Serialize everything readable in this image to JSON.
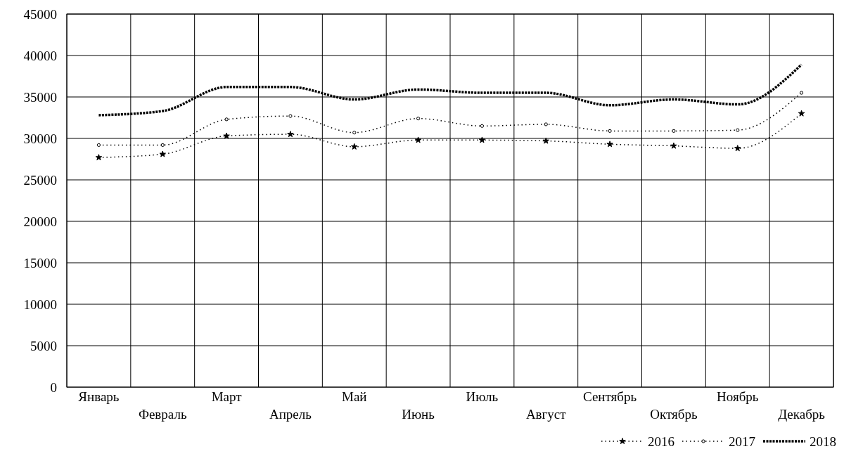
{
  "chart_data": {
    "type": "line",
    "categories": [
      "Январь",
      "Февраль",
      "Март",
      "Апрель",
      "Май",
      "Июнь",
      "Июль",
      "Август",
      "Сентябрь",
      "Октябрь",
      "Ноябрь",
      "Декабрь"
    ],
    "ylim": [
      0,
      45000
    ],
    "yticks": [
      0,
      5000,
      10000,
      15000,
      20000,
      25000,
      30000,
      35000,
      40000,
      45000
    ],
    "grid": true,
    "legend": "bottom right",
    "series": [
      {
        "name": "2016",
        "color": "#000000",
        "marker": "star",
        "line_style": "dotted",
        "values": [
          27700,
          28100,
          30300,
          30500,
          29000,
          29800,
          29800,
          29700,
          29300,
          29100,
          28800,
          33000
        ]
      },
      {
        "name": "2017",
        "color": "#000000",
        "marker": "circle",
        "line_style": "dotted",
        "values": [
          29200,
          29200,
          32300,
          32700,
          30700,
          32400,
          31500,
          31700,
          30900,
          30900,
          31000,
          35500
        ]
      },
      {
        "name": "2018",
        "color": "#000000",
        "marker": "none",
        "line_style": "dashed",
        "values": [
          32800,
          33300,
          36200,
          36200,
          34700,
          35900,
          35500,
          35500,
          34000,
          34700,
          34100,
          38900
        ]
      }
    ]
  }
}
